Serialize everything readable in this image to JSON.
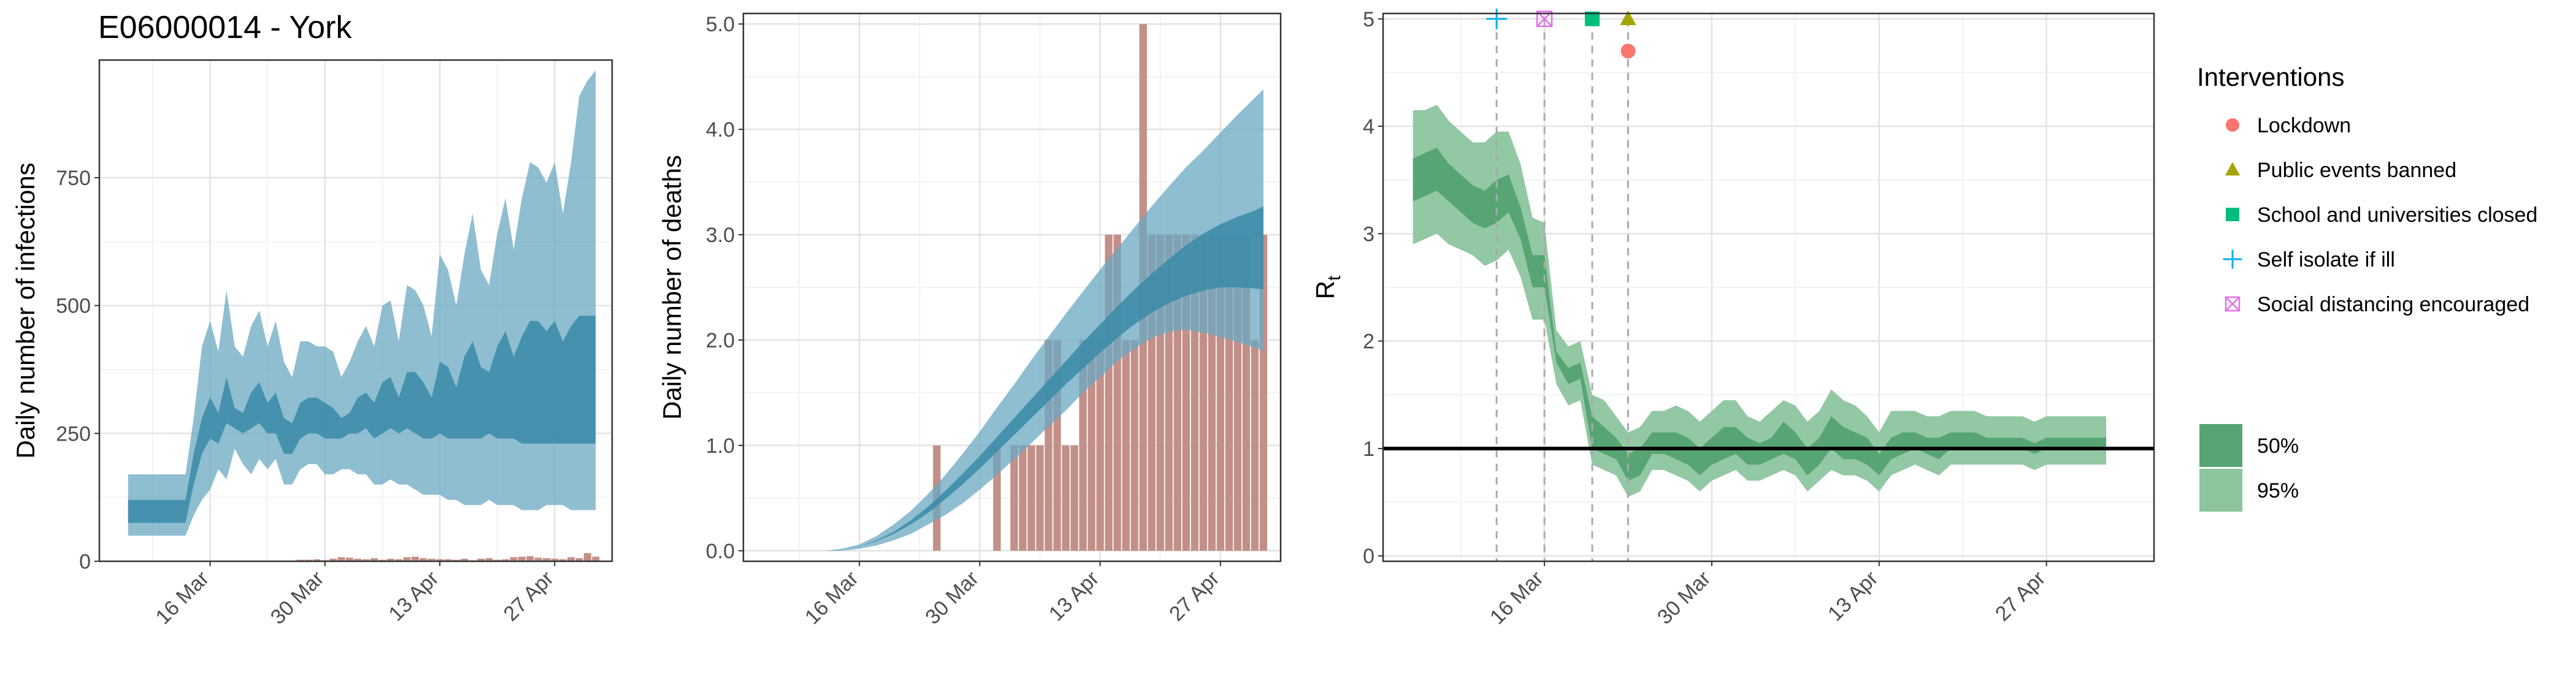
{
  "page_title": "E06000014 - York",
  "colors": {
    "band95_blue": "#69A8C1",
    "band50_blue": "#3A8BA8",
    "death_bars": "#C29088",
    "band95_green": "#8CC59E",
    "band50_green": "#57A574",
    "rt_line": "#000000",
    "lockdown": "#F8766D",
    "public_events": "#A3A500",
    "schools": "#00BF7D",
    "self_isolate": "#00B0F6",
    "social_distancing": "#E76BF3"
  },
  "chart_data": [
    {
      "type": "area",
      "ylabel": "Daily number of infections",
      "ylim": [
        0,
        980
      ],
      "yticks": [
        0,
        250,
        500,
        750
      ],
      "xticks": [
        "16 Mar",
        "30 Mar",
        "13 Apr",
        "27 Apr"
      ],
      "xtick_days": [
        16,
        30,
        44,
        58
      ],
      "xlim": [
        2.5,
        65
      ],
      "x": [
        6,
        7,
        8,
        9,
        10,
        11,
        12,
        13,
        14,
        15,
        16,
        17,
        18,
        19,
        20,
        21,
        22,
        23,
        24,
        25,
        26,
        27,
        28,
        29,
        30,
        31,
        32,
        33,
        34,
        35,
        36,
        37,
        38,
        39,
        40,
        41,
        42,
        43,
        44,
        45,
        46,
        47,
        48,
        49,
        50,
        51,
        52,
        53,
        54,
        55,
        56,
        57,
        58,
        59,
        60,
        61,
        62,
        63
      ],
      "band95": {
        "lower": [
          50,
          50,
          50,
          50,
          50,
          50,
          50,
          50,
          90,
          120,
          140,
          180,
          160,
          220,
          190,
          170,
          200,
          180,
          200,
          150,
          150,
          180,
          190,
          190,
          170,
          170,
          180,
          180,
          170,
          170,
          150,
          150,
          160,
          150,
          150,
          140,
          130,
          130,
          130,
          120,
          120,
          110,
          110,
          110,
          120,
          110,
          110,
          110,
          100,
          100,
          100,
          110,
          110,
          110,
          100,
          100,
          100,
          100
        ],
        "upper": [
          170,
          170,
          170,
          170,
          170,
          170,
          170,
          170,
          280,
          420,
          470,
          410,
          530,
          420,
          400,
          460,
          490,
          420,
          470,
          390,
          360,
          430,
          430,
          420,
          420,
          410,
          360,
          390,
          430,
          460,
          420,
          500,
          510,
          430,
          540,
          530,
          500,
          440,
          600,
          570,
          500,
          600,
          680,
          570,
          540,
          640,
          710,
          610,
          710,
          780,
          770,
          740,
          780,
          680,
          780,
          910,
          940,
          960
        ]
      },
      "band50": {
        "lower": [
          75,
          75,
          75,
          75,
          75,
          75,
          75,
          75,
          150,
          210,
          240,
          230,
          270,
          260,
          250,
          260,
          270,
          250,
          250,
          210,
          210,
          240,
          250,
          250,
          240,
          240,
          240,
          250,
          250,
          260,
          240,
          250,
          260,
          250,
          260,
          250,
          240,
          240,
          250,
          240,
          240,
          240,
          240,
          240,
          250,
          240,
          240,
          240,
          230,
          230,
          230,
          230,
          230,
          230,
          230,
          230,
          230,
          230
        ],
        "upper": [
          120,
          120,
          120,
          120,
          120,
          120,
          120,
          120,
          210,
          280,
          320,
          290,
          360,
          300,
          290,
          330,
          350,
          310,
          330,
          280,
          270,
          310,
          320,
          320,
          310,
          300,
          280,
          290,
          320,
          330,
          310,
          350,
          360,
          320,
          370,
          370,
          350,
          320,
          390,
          380,
          340,
          400,
          430,
          380,
          370,
          420,
          450,
          400,
          440,
          470,
          470,
          450,
          470,
          430,
          460,
          480,
          480,
          480
        ]
      },
      "bar_values": [
        0,
        0,
        0,
        0,
        0,
        0,
        0,
        0,
        0,
        0,
        0,
        0,
        0,
        0,
        0,
        0,
        0,
        0,
        0,
        0,
        0,
        3,
        3,
        4,
        2,
        5,
        8,
        7,
        5,
        4,
        6,
        3,
        5,
        4,
        8,
        9,
        6,
        5,
        4,
        4,
        3,
        5,
        2,
        5,
        6,
        3,
        4,
        8,
        9,
        10,
        7,
        6,
        5,
        4,
        8,
        6,
        16,
        9
      ]
    },
    {
      "type": "area",
      "ylabel": "Daily number of deaths",
      "ylim": [
        -0.1,
        5.1
      ],
      "yticks": [
        0.0,
        1.0,
        2.0,
        3.0,
        4.0,
        5.0
      ],
      "ytick_labels": [
        "0.0",
        "1.0",
        "2.0",
        "3.0",
        "4.0",
        "5.0"
      ],
      "xticks": [
        "16 Mar",
        "30 Mar",
        "13 Apr",
        "27 Apr"
      ],
      "xtick_days": [
        16,
        30,
        44,
        58
      ],
      "xlim": [
        2.5,
        65
      ],
      "band_x": [
        6,
        8,
        10,
        12,
        14,
        16,
        18,
        20,
        22,
        24,
        26,
        28,
        30,
        32,
        34,
        36,
        38,
        40,
        42,
        44,
        46,
        48,
        50,
        52,
        54,
        56,
        58,
        60,
        62,
        63
      ],
      "band95": {
        "lower": [
          0,
          0,
          0,
          0,
          0,
          0.02,
          0.05,
          0.1,
          0.16,
          0.25,
          0.34,
          0.45,
          0.58,
          0.72,
          0.87,
          1.02,
          1.18,
          1.33,
          1.5,
          1.65,
          1.8,
          1.92,
          2.02,
          2.08,
          2.1,
          2.07,
          2.03,
          1.98,
          1.93,
          1.9
        ],
        "upper": [
          0,
          0,
          0,
          0,
          0.02,
          0.06,
          0.14,
          0.25,
          0.38,
          0.54,
          0.72,
          0.92,
          1.13,
          1.36,
          1.58,
          1.81,
          2.03,
          2.25,
          2.46,
          2.67,
          2.87,
          3.07,
          3.27,
          3.46,
          3.64,
          3.8,
          3.97,
          4.14,
          4.3,
          4.38
        ]
      },
      "band50": {
        "lower": [
          0,
          0,
          0,
          0,
          0,
          0.04,
          0.09,
          0.16,
          0.25,
          0.36,
          0.49,
          0.63,
          0.78,
          0.94,
          1.1,
          1.26,
          1.42,
          1.58,
          1.73,
          1.88,
          2.02,
          2.15,
          2.26,
          2.35,
          2.42,
          2.47,
          2.5,
          2.5,
          2.49,
          2.48
        ],
        "upper": [
          0,
          0,
          0,
          0,
          0,
          0.04,
          0.1,
          0.18,
          0.29,
          0.42,
          0.57,
          0.73,
          0.9,
          1.08,
          1.26,
          1.44,
          1.62,
          1.8,
          1.98,
          2.15,
          2.32,
          2.48,
          2.63,
          2.77,
          2.9,
          3.01,
          3.1,
          3.17,
          3.23,
          3.27
        ]
      },
      "bar_days": [
        25,
        26,
        27,
        28,
        29,
        30,
        31,
        32,
        33,
        34,
        35,
        36,
        37,
        38,
        39,
        40,
        41,
        42,
        43,
        44,
        45,
        46,
        47,
        48,
        49,
        50,
        51,
        52,
        53,
        54,
        55,
        56,
        57,
        58,
        59,
        60,
        61,
        62,
        63
      ],
      "bar_values": [
        1,
        0,
        0,
        0,
        0,
        0,
        0,
        1,
        0,
        1,
        1,
        1,
        1,
        2,
        2,
        1,
        1,
        2,
        2,
        2,
        3,
        3,
        2,
        2,
        5,
        3,
        3,
        3,
        3,
        3,
        3,
        3,
        3,
        3,
        3,
        3,
        3,
        2,
        3
      ]
    },
    {
      "type": "line",
      "ylabel": "R",
      "ylabel_sub": "t",
      "ylim": [
        -0.05,
        5.05
      ],
      "yticks": [
        0,
        1,
        2,
        3,
        4,
        5
      ],
      "xticks": [
        "16 Mar",
        "30 Mar",
        "13 Apr",
        "27 Apr"
      ],
      "xtick_days": [
        16,
        30,
        44,
        58
      ],
      "xlim": [
        2.5,
        67
      ],
      "reference_y": 1,
      "x": [
        5,
        6,
        7,
        8,
        9,
        10,
        11,
        12,
        13,
        14,
        15,
        16,
        17,
        18,
        19,
        20,
        21,
        22,
        23,
        24,
        25,
        26,
        27,
        28,
        29,
        30,
        31,
        32,
        33,
        34,
        35,
        36,
        37,
        38,
        39,
        40,
        41,
        42,
        43,
        44,
        45,
        46,
        47,
        48,
        49,
        50,
        51,
        52,
        53,
        54,
        55,
        56,
        57,
        58,
        59,
        60,
        61,
        62,
        63
      ],
      "band95": {
        "lower": [
          2.9,
          2.95,
          3.0,
          2.9,
          2.85,
          2.8,
          2.7,
          2.75,
          2.85,
          2.6,
          2.2,
          2.2,
          1.6,
          1.4,
          1.45,
          0.85,
          0.8,
          0.75,
          0.55,
          0.6,
          0.8,
          0.8,
          0.75,
          0.7,
          0.6,
          0.7,
          0.75,
          0.8,
          0.7,
          0.7,
          0.75,
          0.8,
          0.75,
          0.6,
          0.7,
          0.8,
          0.75,
          0.75,
          0.7,
          0.6,
          0.75,
          0.8,
          0.85,
          0.8,
          0.75,
          0.85,
          0.85,
          0.85,
          0.85,
          0.85,
          0.85,
          0.85,
          0.8,
          0.85,
          0.85,
          0.85,
          0.85,
          0.85,
          0.85
        ],
        "upper": [
          4.15,
          4.15,
          4.2,
          4.05,
          3.95,
          3.85,
          3.85,
          3.95,
          3.95,
          3.65,
          3.15,
          3.1,
          2.1,
          1.95,
          2.0,
          1.5,
          1.45,
          1.3,
          1.15,
          1.2,
          1.35,
          1.35,
          1.4,
          1.35,
          1.25,
          1.35,
          1.45,
          1.45,
          1.3,
          1.25,
          1.35,
          1.45,
          1.4,
          1.25,
          1.35,
          1.55,
          1.45,
          1.4,
          1.3,
          1.15,
          1.35,
          1.35,
          1.35,
          1.3,
          1.3,
          1.35,
          1.35,
          1.35,
          1.3,
          1.3,
          1.3,
          1.3,
          1.25,
          1.3,
          1.3,
          1.3,
          1.3,
          1.3,
          1.3
        ]
      },
      "band50": {
        "lower": [
          3.3,
          3.35,
          3.4,
          3.3,
          3.2,
          3.1,
          3.05,
          3.1,
          3.2,
          2.95,
          2.5,
          2.5,
          1.8,
          1.6,
          1.65,
          1.0,
          0.95,
          0.9,
          0.7,
          0.75,
          0.95,
          0.95,
          0.9,
          0.85,
          0.75,
          0.85,
          0.9,
          0.95,
          0.85,
          0.85,
          0.9,
          0.95,
          0.9,
          0.75,
          0.85,
          1.0,
          0.9,
          0.9,
          0.85,
          0.75,
          0.9,
          0.95,
          1.0,
          0.95,
          0.9,
          1.0,
          1.0,
          1.0,
          1.0,
          1.0,
          1.0,
          1.0,
          0.95,
          1.0,
          1.0,
          1.0,
          1.0,
          1.0,
          1.0
        ],
        "upper": [
          3.7,
          3.75,
          3.8,
          3.65,
          3.55,
          3.45,
          3.4,
          3.5,
          3.55,
          3.25,
          2.8,
          2.8,
          1.9,
          1.75,
          1.8,
          1.3,
          1.2,
          1.1,
          0.95,
          1.0,
          1.15,
          1.15,
          1.15,
          1.1,
          1.0,
          1.1,
          1.2,
          1.2,
          1.1,
          1.05,
          1.1,
          1.25,
          1.15,
          1.0,
          1.1,
          1.3,
          1.2,
          1.15,
          1.1,
          0.95,
          1.1,
          1.15,
          1.15,
          1.1,
          1.1,
          1.15,
          1.15,
          1.15,
          1.1,
          1.1,
          1.1,
          1.1,
          1.05,
          1.1,
          1.1,
          1.1,
          1.1,
          1.1,
          1.1
        ]
      },
      "interventions": [
        {
          "name": "Lockdown",
          "day": 23,
          "y": 4.7,
          "shape": "circle",
          "color": "#F8766D"
        },
        {
          "name": "Public events banned",
          "day": 23,
          "y": 5.0,
          "shape": "triangle",
          "color": "#A3A500"
        },
        {
          "name": "School and universities closed",
          "day": 20,
          "y": 5.0,
          "shape": "square",
          "color": "#00BF7D"
        },
        {
          "name": "Self isolate if ill",
          "day": 12,
          "y": 5.0,
          "shape": "plus",
          "color": "#00B0F6"
        },
        {
          "name": "Social distancing encouraged",
          "day": 16,
          "y": 5.0,
          "shape": "boxcross",
          "color": "#E76BF3"
        }
      ]
    }
  ],
  "legend": {
    "title": "Interventions",
    "items": [
      {
        "label": "Lockdown",
        "shape": "circle",
        "color": "#F8766D"
      },
      {
        "label": "Public events banned",
        "shape": "triangle",
        "color": "#A3A500"
      },
      {
        "label": "School and universities closed",
        "shape": "square",
        "color": "#00BF7D"
      },
      {
        "label": "Self isolate if ill",
        "shape": "plus",
        "color": "#00B0F6"
      },
      {
        "label": "Social distancing encouraged",
        "shape": "boxcross",
        "color": "#E76BF3"
      }
    ],
    "bands": [
      {
        "label": "50%",
        "color": "#57A574"
      },
      {
        "label": "95%",
        "color": "#8CC59E"
      }
    ]
  }
}
